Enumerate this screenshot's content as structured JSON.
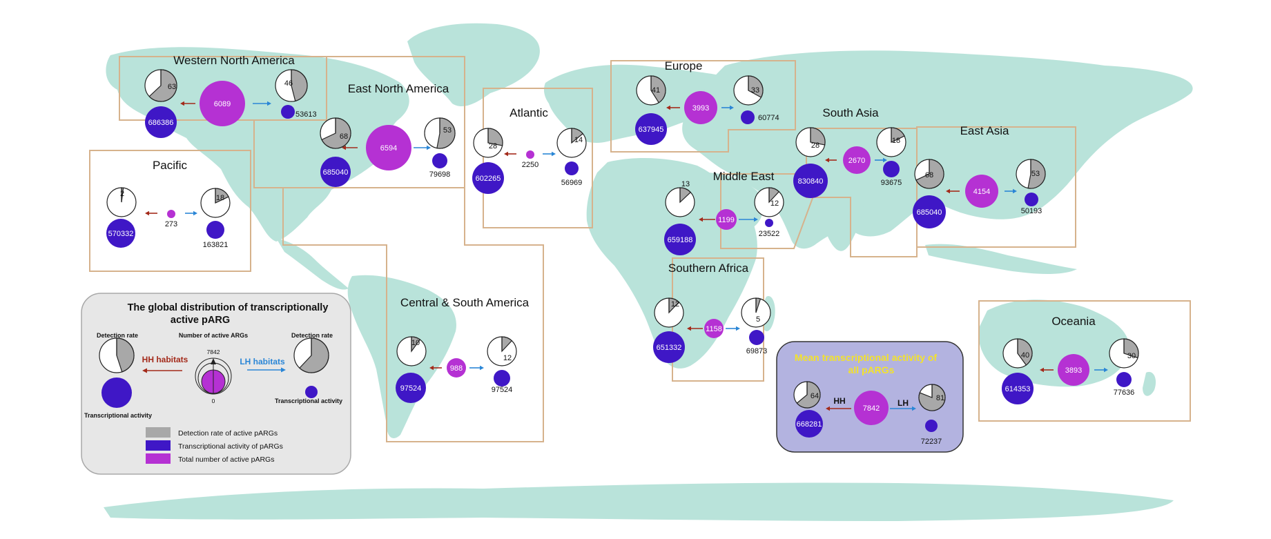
{
  "colors": {
    "land": "#b9e3da",
    "box_border": "#d6b28c",
    "detection": "#a8a8a8",
    "activity": "#3f17c6",
    "total": "#b531d3",
    "hh_arrow": "#a32a1a",
    "lh_arrow": "#2a86d6",
    "legend_bg": "#e7e7e7",
    "mean_bg": "#b3b3e0",
    "mean_title": "#f3e22b"
  },
  "regions": [
    {
      "id": "wna",
      "name": "Western North America",
      "hh_rate": 63,
      "hh_rate_label": "63",
      "hh_activity": "686386",
      "total": "6089",
      "lh_rate": 46,
      "lh_rate_label": "46",
      "lh_activity": "53613"
    },
    {
      "id": "ena",
      "name": "East North America",
      "hh_rate": 68,
      "hh_rate_label": "68",
      "hh_activity": "685040",
      "total": "6594",
      "lh_rate": 53,
      "lh_rate_label": "53",
      "lh_activity": "79698"
    },
    {
      "id": "pac",
      "name": "Pacific",
      "hh_rate": 2,
      "hh_rate_label": "2",
      "hh_activity": "570332",
      "total": "273",
      "lh_rate": 18,
      "lh_rate_label": "18",
      "lh_activity": "163821"
    },
    {
      "id": "atl",
      "name": "Atlantic",
      "hh_rate": 28,
      "hh_rate_label": "28",
      "hh_activity": "602265",
      "total": "2250",
      "lh_rate": 14,
      "lh_rate_label": "14",
      "lh_activity": "56969"
    },
    {
      "id": "eur",
      "name": "Europe",
      "hh_rate": 41,
      "hh_rate_label": "41",
      "hh_activity": "637945",
      "total": "3993",
      "lh_rate": 33,
      "lh_rate_label": "33",
      "lh_activity": "60774"
    },
    {
      "id": "sas",
      "name": "South Asia",
      "hh_rate": 28,
      "hh_rate_label": "28",
      "hh_activity": "830840",
      "total": "2670",
      "lh_rate": 18,
      "lh_rate_label": "18",
      "lh_activity": "93675"
    },
    {
      "id": "eas",
      "name": "East  Asia",
      "hh_rate": 68,
      "hh_rate_label": "68",
      "hh_activity": "685040",
      "total": "4154",
      "lh_rate": 53,
      "lh_rate_label": "53",
      "lh_activity": "50193"
    },
    {
      "id": "mde",
      "name": "Middle East",
      "hh_rate": 13,
      "hh_rate_label": "13",
      "hh_activity": "659188",
      "total": "1199",
      "lh_rate": 12,
      "lh_rate_label": "12",
      "lh_activity": "23522"
    },
    {
      "id": "saf",
      "name": "Southern Africa",
      "hh_rate": 12,
      "hh_rate_label": "12",
      "hh_activity": "651332",
      "total": "1158",
      "lh_rate": 5,
      "lh_rate_label": "5",
      "lh_activity": "69873"
    },
    {
      "id": "csa",
      "name": "Central & South America",
      "hh_rate": 10,
      "hh_rate_label": "10",
      "hh_activity": "97524",
      "total": "988",
      "lh_rate": 12,
      "lh_rate_label": "12",
      "lh_activity": "97524"
    },
    {
      "id": "oce",
      "name": "Oceania",
      "hh_rate": 40,
      "hh_rate_label": "40",
      "hh_activity": "614353",
      "total": "3893",
      "lh_rate": 30,
      "lh_rate_label": "30",
      "lh_activity": "77636"
    }
  ],
  "mean": {
    "title_line1": "Mean transcriptional activity of",
    "title_line2": "all pARGs",
    "hh_label": "HH",
    "lh_label": "LH",
    "hh_rate": 64,
    "hh_rate_label": "64",
    "hh_activity": "668281",
    "total": "7842",
    "lh_rate": 81,
    "lh_rate_label": "81",
    "lh_activity": "72237"
  },
  "legend": {
    "title_line1": "The global distribution of transcriptionally",
    "title_line2": "active pARG",
    "detection_rate_left": "Detection rate",
    "detection_rate_right": "Detection rate",
    "number_label": "Number of active ARGs",
    "scale_max": "7842",
    "scale_min": "0",
    "hh_habitats": "HH habitats",
    "lh_habitats": "LH habitats",
    "activity_left": "Transcriptional activity",
    "activity_right": "Transcriptional activity",
    "keys": [
      {
        "label": "Detection rate of active pARGs",
        "color": "#a8a8a8"
      },
      {
        "label": "Transcriptional activity of pARGs",
        "color": "#3f17c6"
      },
      {
        "label": "Total number of active pARGs",
        "color": "#b531d3"
      }
    ]
  }
}
